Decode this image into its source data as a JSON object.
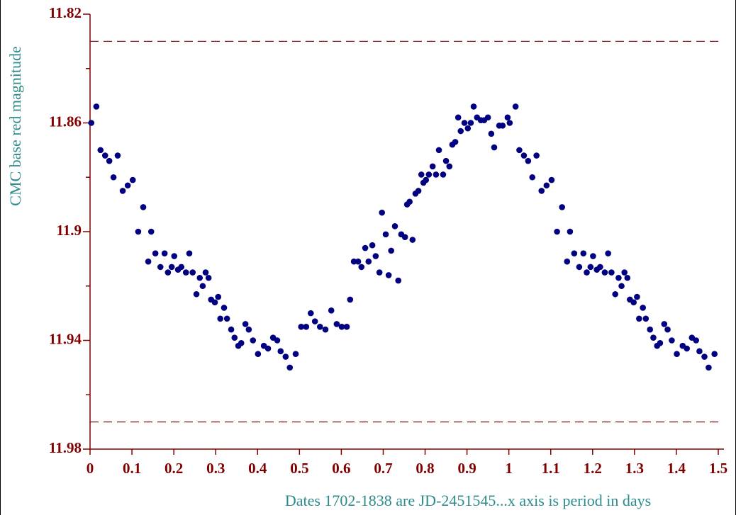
{
  "chart_data": {
    "type": "scatter",
    "ylabel": "CMC base red magnitude",
    "xlabel": "Dates  1702-1838 are JD-2451545...x axis is period in days",
    "color": "#000080",
    "axis_color": "#800000",
    "label_color": "#2e8b8b",
    "reference_lines": [
      11.83,
      11.97
    ],
    "reference_line_color": "#8b1a1a",
    "y_inverted": true,
    "xlim": [
      0,
      1.5
    ],
    "xticks": [
      0,
      0.1,
      0.2,
      0.3,
      0.4,
      0.5,
      0.6,
      0.7,
      0.8,
      0.9,
      1,
      1.1,
      1.2,
      1.3,
      1.4,
      1.5
    ],
    "ylim": [
      11.82,
      11.98
    ],
    "yticks": [
      11.82,
      11.86,
      11.9,
      11.94,
      11.98
    ],
    "yminor_ticks": [
      11.84,
      11.88,
      11.92,
      11.96
    ],
    "x": [
      0.003,
      0.015,
      0.025,
      0.036,
      0.046,
      0.056,
      0.066,
      0.078,
      0.09,
      0.102,
      0.115,
      0.127,
      0.139,
      0.146,
      0.156,
      0.168,
      0.178,
      0.186,
      0.195,
      0.201,
      0.21,
      0.218,
      0.229,
      0.237,
      0.245,
      0.254,
      0.262,
      0.269,
      0.276,
      0.283,
      0.289,
      0.298,
      0.306,
      0.311,
      0.32,
      0.327,
      0.337,
      0.345,
      0.354,
      0.361,
      0.371,
      0.379,
      0.389,
      0.401,
      0.415,
      0.425,
      0.437,
      0.447,
      0.455,
      0.467,
      0.477,
      0.491,
      0.504,
      0.516,
      0.527,
      0.537,
      0.549,
      0.562,
      0.576,
      0.589,
      0.601,
      0.613,
      0.621,
      0.63,
      0.64,
      0.648,
      0.657,
      0.665,
      0.674,
      0.682,
      0.691,
      0.697,
      0.706,
      0.713,
      0.719,
      0.728,
      0.736,
      0.743,
      0.752,
      0.757,
      0.763,
      0.77,
      0.777,
      0.784,
      0.791,
      0.796,
      0.802,
      0.809,
      0.818,
      0.826,
      0.833,
      0.843,
      0.85,
      0.858,
      0.865,
      0.872,
      0.879,
      0.885,
      0.894,
      0.902,
      0.909,
      0.916,
      0.924,
      0.933,
      0.941,
      0.95,
      0.958,
      0.965,
      0.977,
      0.985,
      0.997,
      1.002,
      1.016,
      1.025,
      1.036,
      1.046,
      1.056,
      1.066,
      1.078,
      1.09,
      1.102,
      1.115,
      1.127,
      1.139,
      1.146,
      1.156,
      1.168,
      1.178,
      1.186,
      1.195,
      1.201,
      1.21,
      1.218,
      1.229,
      1.237,
      1.245,
      1.254,
      1.262,
      1.269,
      1.276,
      1.283,
      1.289,
      1.298,
      1.306,
      1.311,
      1.32,
      1.327,
      1.337,
      1.345,
      1.354,
      1.361,
      1.371,
      1.379,
      1.389,
      1.401,
      1.415,
      1.425,
      1.437,
      1.447,
      1.455,
      1.467,
      1.477,
      1.491
    ],
    "values": [
      11.86,
      11.854,
      11.87,
      11.872,
      11.874,
      11.88,
      11.872,
      11.885,
      11.883,
      11.881,
      11.9,
      11.891,
      11.911,
      11.9,
      11.908,
      11.913,
      11.908,
      11.915,
      11.913,
      11.909,
      11.914,
      11.913,
      11.915,
      11.908,
      11.915,
      11.923,
      11.917,
      11.92,
      11.915,
      11.917,
      11.925,
      11.926,
      11.924,
      11.932,
      11.928,
      11.932,
      11.936,
      11.939,
      11.942,
      11.941,
      11.934,
      11.936,
      11.94,
      11.945,
      11.942,
      11.943,
      11.939,
      11.94,
      11.944,
      11.946,
      11.95,
      11.945,
      11.935,
      11.935,
      11.93,
      11.933,
      11.935,
      11.936,
      11.929,
      11.934,
      11.935,
      11.935,
      11.925,
      11.911,
      11.911,
      11.913,
      11.906,
      11.911,
      11.905,
      11.909,
      11.915,
      11.893,
      11.901,
      11.916,
      11.907,
      11.898,
      11.918,
      11.901,
      11.902,
      11.89,
      11.889,
      11.903,
      11.886,
      11.885,
      11.879,
      11.882,
      11.881,
      11.879,
      11.876,
      11.879,
      11.87,
      11.879,
      11.874,
      11.876,
      11.868,
      11.867,
      11.858,
      11.863,
      11.86,
      11.862,
      11.86,
      11.854,
      11.858,
      11.859,
      11.859,
      11.858,
      11.864,
      11.869,
      11.861,
      11.861,
      11.858,
      11.86,
      11.854,
      11.87,
      11.872,
      11.874,
      11.88,
      11.872,
      11.885,
      11.883,
      11.881,
      11.9,
      11.891,
      11.911,
      11.9,
      11.908,
      11.913,
      11.908,
      11.915,
      11.913,
      11.909,
      11.914,
      11.913,
      11.915,
      11.908,
      11.915,
      11.923,
      11.917,
      11.92,
      11.915,
      11.917,
      11.925,
      11.926,
      11.924,
      11.932,
      11.928,
      11.932,
      11.936,
      11.939,
      11.942,
      11.941,
      11.934,
      11.936,
      11.94,
      11.945,
      11.942,
      11.943,
      11.939,
      11.94,
      11.944,
      11.946,
      11.95,
      11.945
    ]
  }
}
